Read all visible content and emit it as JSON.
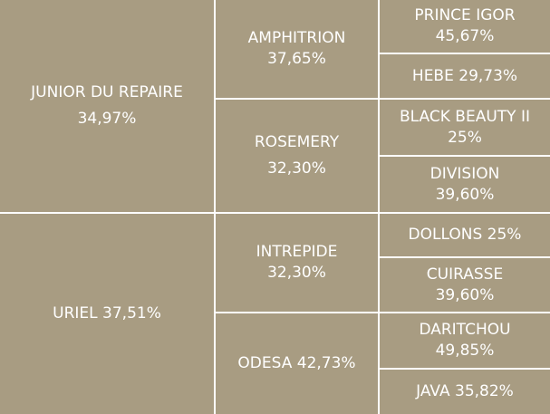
{
  "pedigree": {
    "gen1": [
      {
        "name": "JUNIOR DU REPAIRE",
        "percent": "34,97%"
      },
      {
        "name": "URIEL",
        "percent": "37,51%"
      }
    ],
    "gen2": [
      {
        "name": "AMPHITRION",
        "percent": "37,65%"
      },
      {
        "name": "ROSEMERY",
        "percent": "32,30%"
      },
      {
        "name": "INTREPIDE",
        "percent": "32,30%"
      },
      {
        "name": "ODESA",
        "percent": "42,73%"
      }
    ],
    "gen3": [
      {
        "name": "PRINCE IGOR",
        "percent": "45,67%"
      },
      {
        "name": "HEBE",
        "percent": "29,73%"
      },
      {
        "name": "BLACK BEAUTY II",
        "percent": "25%"
      },
      {
        "name": "DIVISION",
        "percent": "39,60%"
      },
      {
        "name": "DOLLONS",
        "percent": "25%"
      },
      {
        "name": "CUIRASSE",
        "percent": "39,60%"
      },
      {
        "name": "DARITCHOU",
        "percent": "49,85%"
      },
      {
        "name": "JAVA",
        "percent": "35,82%"
      }
    ]
  },
  "colors": {
    "background": "#a89c82",
    "text": "#ffffff",
    "divider": "#ffffff"
  }
}
